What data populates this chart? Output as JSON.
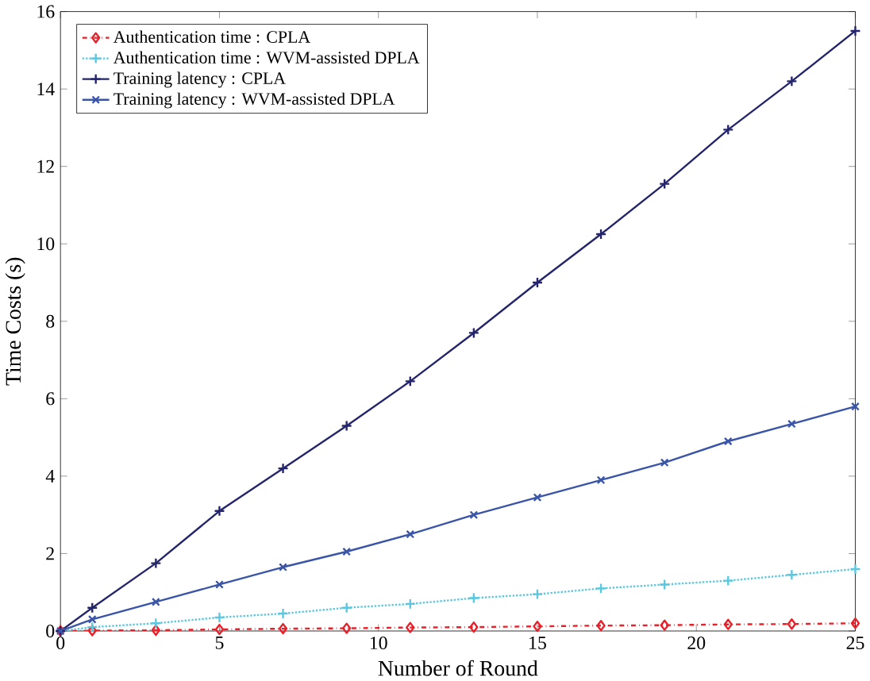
{
  "chart_data": {
    "type": "line",
    "xlabel": "Number of Round",
    "ylabel": "Time Costs (s)",
    "xlim": [
      0,
      25
    ],
    "ylim": [
      0,
      16
    ],
    "xticks": [
      0,
      5,
      10,
      15,
      20,
      25
    ],
    "yticks": [
      0,
      2,
      4,
      6,
      8,
      10,
      12,
      14,
      16
    ],
    "grid": false,
    "legend": "top left",
    "x": [
      0,
      1,
      3,
      5,
      7,
      9,
      11,
      13,
      15,
      17,
      19,
      21,
      23,
      25
    ],
    "series": [
      {
        "name": "Authentication time : CPLA",
        "color": "#e8202a",
        "marker": "diamond",
        "line_style": "dashdot",
        "values": [
          0,
          0.01,
          0.02,
          0.04,
          0.06,
          0.07,
          0.09,
          0.1,
          0.12,
          0.14,
          0.15,
          0.17,
          0.18,
          0.2
        ]
      },
      {
        "name": "Authentication time : WVM-assisted DPLA",
        "color": "#5bc8e0",
        "marker": "plus",
        "line_style": "dotted",
        "values": [
          0,
          0.1,
          0.2,
          0.35,
          0.45,
          0.6,
          0.7,
          0.85,
          0.95,
          1.1,
          1.2,
          1.3,
          1.45,
          1.6
        ]
      },
      {
        "name": "Training latency : CPLA",
        "color": "#23246b",
        "marker": "plus",
        "line_style": "solid",
        "values": [
          0,
          0.6,
          1.75,
          3.1,
          4.2,
          5.3,
          6.45,
          7.7,
          9.0,
          10.25,
          11.55,
          12.95,
          14.2,
          15.5
        ]
      },
      {
        "name": "Training latency : WVM-assisted DPLA",
        "color": "#3a55a8",
        "marker": "cross",
        "line_style": "solid",
        "values": [
          0,
          0.3,
          0.75,
          1.2,
          1.65,
          2.05,
          2.5,
          3.0,
          3.45,
          3.9,
          4.35,
          4.9,
          5.35,
          5.8
        ]
      }
    ]
  }
}
